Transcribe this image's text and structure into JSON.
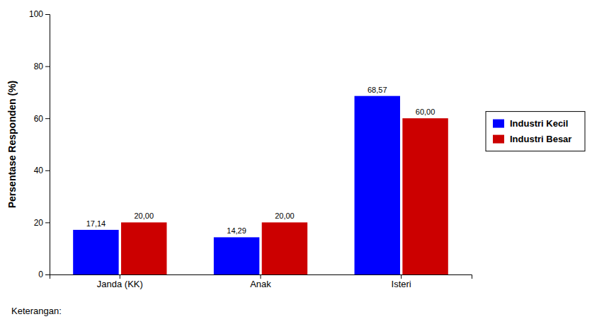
{
  "chart_data": {
    "type": "bar",
    "ylabel": "Persentase Responden (%)",
    "categories": [
      "Janda (KK)",
      "Anak",
      "Isteri"
    ],
    "series": [
      {
        "name": "Industri Kecil",
        "color": "#0000ff",
        "values": [
          17.14,
          14.29,
          68.57
        ],
        "value_labels": [
          "17,14",
          "14,29",
          "68,57"
        ]
      },
      {
        "name": "Industri Besar",
        "color": "#cc0000",
        "values": [
          20.0,
          20.0,
          60.0
        ],
        "value_labels": [
          "20,00",
          "20,00",
          "60,00"
        ]
      }
    ],
    "ylim": [
      0,
      100
    ],
    "yticks": [
      0,
      20,
      40,
      60,
      80,
      100
    ],
    "grid": false,
    "legend": "right",
    "data_labels": true,
    "annotations": [
      "Keterangan:"
    ]
  }
}
